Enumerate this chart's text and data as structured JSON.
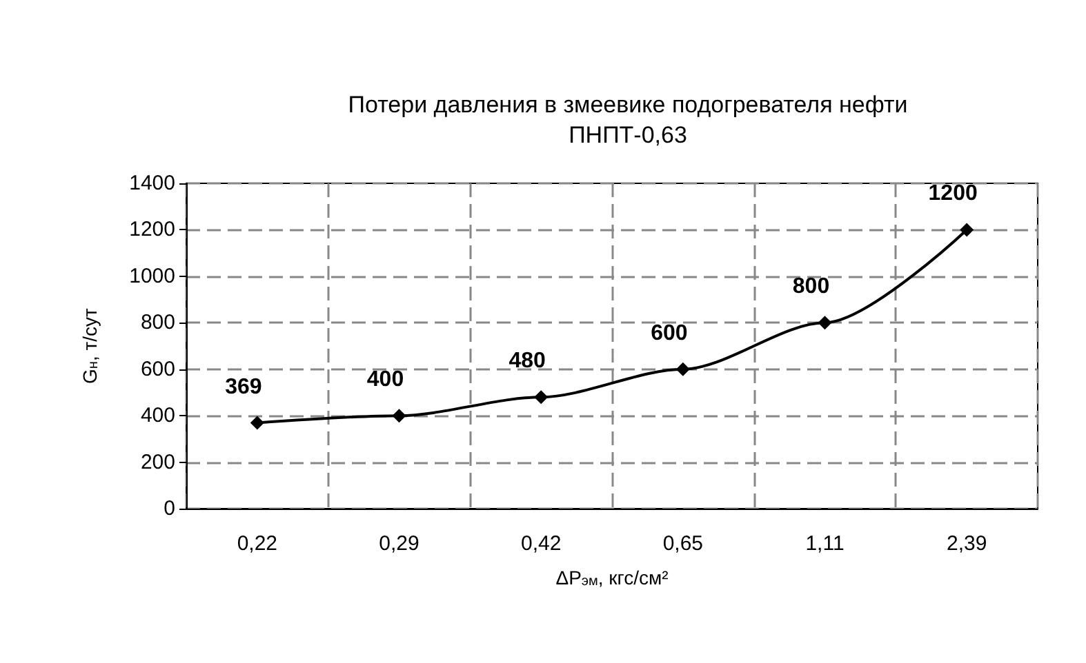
{
  "chart_data": {
    "type": "line",
    "title": "Потери давления в змеевике подогревателя нефти\nПНПТ-0,63",
    "xlabel": "ΔP$_{эм}$, кгс/см²",
    "ylabel": "G$_{н}$, т/сут",
    "categories": [
      "0,22",
      "0,29",
      "0,42",
      "0,65",
      "1,11",
      "2,39"
    ],
    "series": [
      {
        "color": "#000000",
        "values": [
          369,
          400,
          480,
          600,
          800,
          1200
        ]
      }
    ],
    "ylim": [
      0,
      1400
    ],
    "yticks": [
      0,
      200,
      400,
      600,
      800,
      1000,
      1200,
      1400
    ],
    "grid": true,
    "marker": "diamond",
    "line_style": "solid",
    "data_labels": true
  }
}
